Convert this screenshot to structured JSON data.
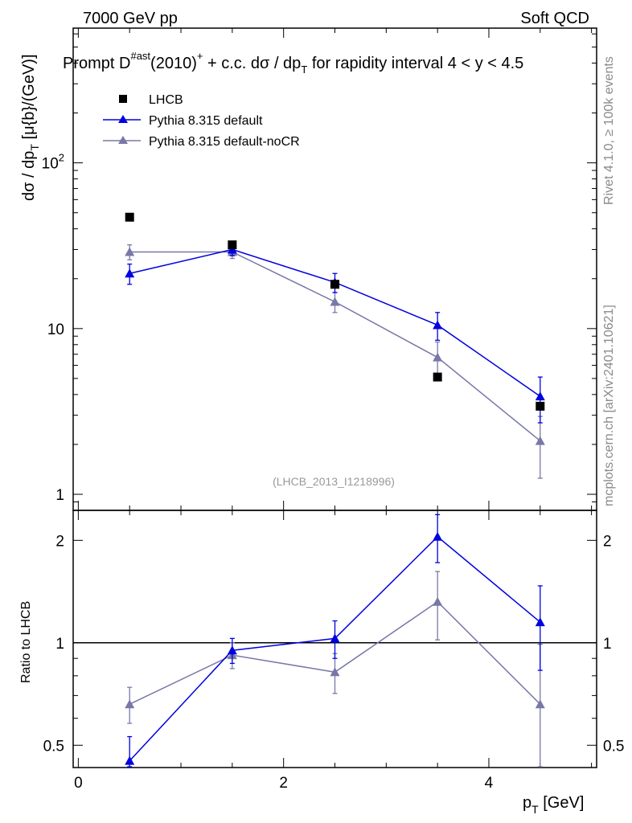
{
  "header": {
    "energy_label": "7000 GeV pp",
    "category_label": "Soft QCD"
  },
  "title": {
    "prefix": "Prompt D",
    "superscript": "#ast",
    "middle": "(2010)",
    "charge": "+",
    "suffix": " + c.c.  dσ / dp",
    "subscript": "T",
    "tail": " for rapidity interval 4 < y < 4.5"
  },
  "side_text": {
    "rivet": "Rivet 4.1.0, ≥ 100k events",
    "mcplots": "mcplots.cern.ch [arXiv:2401.10621]"
  },
  "analysis_id": "(LHCB_2013_I1218996)",
  "chart_data": [
    {
      "panel": "main",
      "type": "line",
      "yscale": "log",
      "ylim": [
        0.8,
        650
      ],
      "xlim": [
        -0.05,
        5.05
      ],
      "yticks": [
        {
          "value": 1,
          "label": "1"
        },
        {
          "value": 10,
          "label": "10"
        },
        {
          "value": 100,
          "label": "10",
          "sup": "2"
        }
      ],
      "ylabel": {
        "main": "dσ / dp",
        "sub": "T",
        "tail": " [μ{b}/(GeV)]"
      },
      "legend_position": "top-left",
      "series": [
        {
          "name": "LHCB",
          "style": "square",
          "color": "#000000",
          "x": [
            0.5,
            1.5,
            2.5,
            3.5,
            4.5
          ],
          "values": [
            47.0,
            32.0,
            18.5,
            5.1,
            3.4
          ],
          "errors": [
            0,
            0,
            0,
            0,
            0
          ]
        },
        {
          "name": "Pythia 8.315 default",
          "style": "triangle",
          "color": "#0000e0",
          "x": [
            0.5,
            1.5,
            2.5,
            3.5,
            4.5
          ],
          "values": [
            21.5,
            30.0,
            19.0,
            10.5,
            3.9
          ],
          "errors": [
            3.0,
            2.5,
            2.5,
            2.0,
            1.2
          ]
        },
        {
          "name": "Pythia 8.315 default-noCR",
          "style": "triangle",
          "color": "#7878a8",
          "x": [
            0.5,
            1.5,
            2.5,
            3.5,
            4.5
          ],
          "values": [
            29.0,
            29.0,
            14.5,
            6.7,
            2.1
          ],
          "errors": [
            3.0,
            2.5,
            2.0,
            1.6,
            0.85
          ]
        }
      ]
    },
    {
      "panel": "ratio",
      "type": "line",
      "yscale": "log",
      "ylim": [
        0.43,
        2.45
      ],
      "xlim": [
        -0.05,
        5.05
      ],
      "ylabel": "Ratio to LHCB",
      "reference_line": 1,
      "yticks": [
        {
          "value": 0.5,
          "label": "0.5"
        },
        {
          "value": 1,
          "label": "1"
        },
        {
          "value": 2,
          "label": "2"
        }
      ],
      "xticks": [
        {
          "value": 0,
          "label": "0"
        },
        {
          "value": 2,
          "label": "2"
        },
        {
          "value": 4,
          "label": "4"
        }
      ],
      "xlabel": {
        "main": "p",
        "sub": "T",
        "tail": " [GeV]"
      },
      "series": [
        {
          "name": "Pythia 8.315 default",
          "color": "#0000e0",
          "x": [
            0.5,
            1.5,
            2.5,
            3.5,
            4.5
          ],
          "values": [
            0.45,
            0.95,
            1.03,
            2.05,
            1.15
          ],
          "errors": [
            0.08,
            0.08,
            0.13,
            0.33,
            0.32
          ]
        },
        {
          "name": "Pythia 8.315 default-noCR",
          "color": "#7878a8",
          "x": [
            0.5,
            1.5,
            2.5,
            3.5,
            4.5
          ],
          "values": [
            0.66,
            0.92,
            0.82,
            1.32,
            0.66
          ],
          "errors": [
            0.08,
            0.08,
            0.11,
            0.3,
            0.33
          ]
        }
      ]
    }
  ]
}
